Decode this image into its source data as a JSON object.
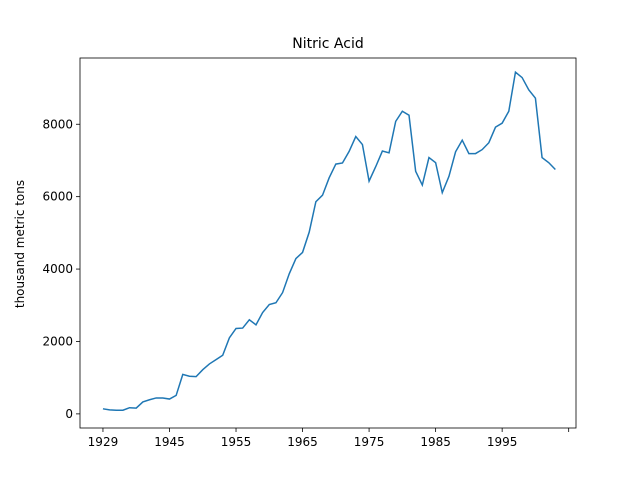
{
  "chart_data": {
    "type": "line",
    "title": "Nitric Acid",
    "ylabel": "thousand metric tons",
    "categories": [
      "1929",
      null,
      null,
      null,
      null,
      null,
      null,
      null,
      null,
      null,
      "1945",
      null,
      null,
      null,
      null,
      null,
      null,
      null,
      null,
      null,
      "1955",
      null,
      null,
      null,
      null,
      null,
      null,
      null,
      null,
      null,
      "1965",
      null,
      null,
      null,
      null,
      null,
      null,
      null,
      null,
      null,
      "1975",
      null,
      null,
      null,
      null,
      null,
      null,
      null,
      null,
      null,
      "1985",
      null,
      null,
      null,
      null,
      null,
      null,
      null,
      null,
      null,
      "1995",
      null,
      null,
      null,
      null,
      null,
      null,
      null,
      null
    ],
    "values": [
      140,
      110,
      100,
      100,
      170,
      160,
      330,
      390,
      440,
      440,
      410,
      510,
      1090,
      1040,
      1030,
      1220,
      1380,
      1500,
      1620,
      2100,
      2360,
      2370,
      2600,
      2460,
      2800,
      3020,
      3070,
      3350,
      3870,
      4290,
      4460,
      5020,
      5860,
      6040,
      6520,
      6900,
      6930,
      7250,
      7660,
      7440,
      6430,
      6830,
      7260,
      7210,
      8080,
      8360,
      8250,
      6700,
      6320,
      7080,
      6940,
      6110,
      6560,
      7240,
      7560,
      7190,
      7190,
      7300,
      7490,
      7920,
      8030,
      8360,
      9440,
      9290,
      8950,
      8720,
      7080,
      6940,
      6750
    ],
    "color": "#1f77b4",
    "xticks": [
      0,
      10,
      20,
      30,
      40,
      50,
      60,
      70
    ],
    "xlim": [
      -3.45,
      71.1
    ],
    "ylim": [
      -390,
      9830
    ],
    "yticks": [
      0,
      2000,
      4000,
      6000,
      8000
    ]
  }
}
